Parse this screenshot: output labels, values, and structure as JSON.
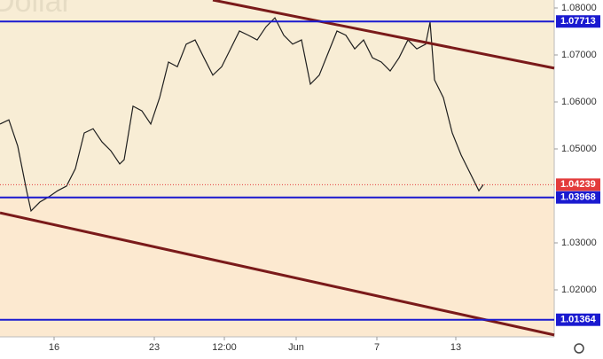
{
  "chart_data": {
    "type": "line",
    "watermark": "Dollar",
    "x": [
      0,
      2,
      4,
      6,
      7,
      9,
      11,
      13,
      15,
      17,
      19,
      21,
      23,
      25,
      27,
      28,
      30,
      32,
      34,
      36,
      38,
      40,
      42,
      44,
      46,
      48,
      50,
      52,
      54,
      56,
      58,
      60,
      62,
      64,
      66,
      68,
      70,
      72,
      74,
      76,
      78,
      80,
      82,
      84,
      86,
      88,
      90,
      92,
      94,
      96,
      97,
      98,
      100,
      102,
      104,
      106,
      108,
      109
    ],
    "series": [
      {
        "name": "Dollar",
        "color": "#1f1f1f",
        "values": [
          1.0553,
          1.0562,
          1.0506,
          1.0411,
          1.0368,
          1.0387,
          1.0398,
          1.0411,
          1.0421,
          1.0458,
          1.0534,
          1.0543,
          1.0515,
          1.0496,
          1.0468,
          1.0477,
          1.0591,
          1.0581,
          1.0553,
          1.0609,
          1.0685,
          1.0675,
          1.0723,
          1.0732,
          1.0694,
          1.0657,
          1.0675,
          1.0713,
          1.0751,
          1.0742,
          1.0732,
          1.076,
          1.0779,
          1.0742,
          1.0723,
          1.0732,
          1.0638,
          1.0657,
          1.0704,
          1.0751,
          1.0742,
          1.0713,
          1.0732,
          1.0694,
          1.0685,
          1.0666,
          1.0694,
          1.0732,
          1.0713,
          1.0723,
          1.077,
          1.0647,
          1.0609,
          1.0534,
          1.0487,
          1.0449,
          1.0411,
          1.04239
        ]
      }
    ],
    "xlim": [
      0,
      125
    ],
    "ylim": [
      1.01,
      1.0817
    ],
    "xticks": [
      {
        "value": 12.2,
        "label": "16"
      },
      {
        "value": 34.8,
        "label": "23"
      },
      {
        "value": 50.6,
        "label": "12:00"
      },
      {
        "value": 66.8,
        "label": "Jun"
      },
      {
        "value": 85,
        "label": "7"
      },
      {
        "value": 102.8,
        "label": "13"
      }
    ],
    "yticks": [
      {
        "value": 1.08,
        "label": "1.08000"
      },
      {
        "value": 1.07,
        "label": "1.07000"
      },
      {
        "value": 1.06,
        "label": "1.06000"
      },
      {
        "value": 1.05,
        "label": "1.05000"
      },
      {
        "value": 1.03,
        "label": "1.03000"
      },
      {
        "value": 1.02,
        "label": "1.02000"
      }
    ],
    "levels": [
      {
        "value": 1.07713,
        "label": "1.07713",
        "color": "#1a1ad0"
      },
      {
        "value": 1.03968,
        "label": "1.03968",
        "color": "#1a1ad0"
      },
      {
        "value": 1.01364,
        "label": "1.01364",
        "color": "#1a1ad0"
      }
    ],
    "last_price": {
      "value": 1.04239,
      "label": "1.04239",
      "color": "#e33b3b"
    },
    "trend_lines": [
      {
        "x": [
          48,
          125
        ],
        "y": [
          1.0817,
          1.0672
        ],
        "color": "#7a1a1a"
      },
      {
        "x": [
          0,
          125
        ],
        "y": [
          1.0364,
          1.0104
        ],
        "color": "#7a1a1a"
      }
    ]
  }
}
